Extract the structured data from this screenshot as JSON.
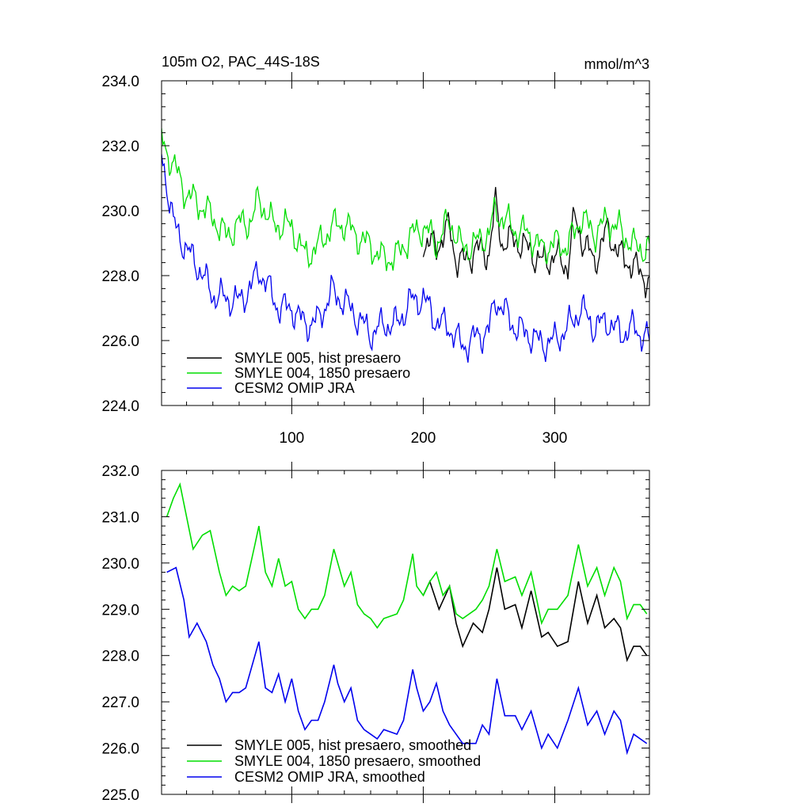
{
  "chart_data": [
    {
      "type": "line",
      "title": "105m O2, PAC_44S-18S",
      "units": "mmol/m^3",
      "xlim": [
        1,
        372
      ],
      "ylim": [
        224.0,
        234.0
      ],
      "xticks": [
        100,
        200,
        300
      ],
      "xtick_labels": [
        "100",
        "200",
        "300"
      ],
      "yticks": [
        224.0,
        226.0,
        228.0,
        230.0,
        232.0,
        234.0
      ],
      "ytick_labels": [
        "224.0",
        "226.0",
        "228.0",
        "230.0",
        "232.0",
        "234.0"
      ],
      "legend_position": "bottom-left",
      "series": [
        {
          "name": "SMYLE 005, hist presaero",
          "color": "#000000",
          "x_start": 200,
          "anchors": [
            [
              200,
              229.0
            ],
            [
              210,
              228.9
            ],
            [
              220,
              229.5
            ],
            [
              225,
              228.5
            ],
            [
              230,
              228.4
            ],
            [
              240,
              228.8
            ],
            [
              250,
              228.7
            ],
            [
              255,
              230.2
            ],
            [
              260,
              229.0
            ],
            [
              270,
              229.1
            ],
            [
              280,
              228.8
            ],
            [
              290,
              228.4
            ],
            [
              300,
              228.6
            ],
            [
              310,
              228.3
            ],
            [
              315,
              229.8
            ],
            [
              320,
              229.2
            ],
            [
              330,
              228.4
            ],
            [
              340,
              229.4
            ],
            [
              350,
              228.6
            ],
            [
              360,
              228.3
            ],
            [
              372,
              227.8
            ]
          ],
          "amp": 0.7
        },
        {
          "name": "SMYLE 004, 1850 presaero",
          "color": "#00dd00",
          "x_start": 1,
          "anchors": [
            [
              1,
              232.2
            ],
            [
              10,
              231.4
            ],
            [
              20,
              230.5
            ],
            [
              30,
              230.2
            ],
            [
              40,
              229.8
            ],
            [
              50,
              229.2
            ],
            [
              60,
              229.6
            ],
            [
              70,
              229.7
            ],
            [
              75,
              230.4
            ],
            [
              85,
              229.6
            ],
            [
              100,
              229.5
            ],
            [
              110,
              228.6
            ],
            [
              120,
              228.9
            ],
            [
              130,
              229.5
            ],
            [
              140,
              229.6
            ],
            [
              150,
              229.2
            ],
            [
              160,
              228.9
            ],
            [
              170,
              228.5
            ],
            [
              180,
              228.6
            ],
            [
              190,
              229.2
            ],
            [
              200,
              229.5
            ],
            [
              210,
              229.0
            ],
            [
              220,
              229.7
            ],
            [
              230,
              228.8
            ],
            [
              240,
              229.0
            ],
            [
              250,
              229.3
            ],
            [
              255,
              230.0
            ],
            [
              270,
              229.4
            ],
            [
              280,
              229.3
            ],
            [
              290,
              228.8
            ],
            [
              300,
              229.0
            ],
            [
              310,
              228.9
            ],
            [
              320,
              229.8
            ],
            [
              330,
              229.3
            ],
            [
              340,
              229.7
            ],
            [
              350,
              229.4
            ],
            [
              360,
              228.9
            ],
            [
              372,
              228.8
            ]
          ],
          "amp": 0.7
        },
        {
          "name": "CESM2 OMIP JRA",
          "color": "#0000ee",
          "x_start": 1,
          "anchors": [
            [
              1,
              231.8
            ],
            [
              10,
              229.6
            ],
            [
              20,
              228.8
            ],
            [
              30,
              228.2
            ],
            [
              40,
              227.4
            ],
            [
              50,
              227.3
            ],
            [
              60,
              227.2
            ],
            [
              70,
              227.7
            ],
            [
              75,
              228.2
            ],
            [
              90,
              227.0
            ],
            [
              100,
              227.0
            ],
            [
              110,
              226.5
            ],
            [
              120,
              226.6
            ],
            [
              130,
              227.5
            ],
            [
              140,
              227.2
            ],
            [
              150,
              226.7
            ],
            [
              160,
              226.2
            ],
            [
              170,
              226.5
            ],
            [
              180,
              226.5
            ],
            [
              190,
              227.2
            ],
            [
              200,
              227.3
            ],
            [
              210,
              226.6
            ],
            [
              220,
              226.4
            ],
            [
              230,
              225.8
            ],
            [
              240,
              226.1
            ],
            [
              250,
              226.3
            ],
            [
              255,
              227.3
            ],
            [
              270,
              226.4
            ],
            [
              280,
              226.2
            ],
            [
              290,
              225.9
            ],
            [
              300,
              226.0
            ],
            [
              310,
              226.4
            ],
            [
              320,
              227.0
            ],
            [
              330,
              226.4
            ],
            [
              340,
              226.6
            ],
            [
              350,
              226.2
            ],
            [
              360,
              226.4
            ],
            [
              372,
              226.0
            ]
          ],
          "amp": 0.7
        }
      ]
    },
    {
      "type": "line",
      "title": "",
      "xlim": [
        1,
        372
      ],
      "ylim": [
        225.0,
        232.0
      ],
      "xticks": [
        100,
        200,
        300
      ],
      "yticks": [
        225.0,
        226.0,
        227.0,
        228.0,
        229.0,
        230.0,
        231.0,
        232.0
      ],
      "ytick_labels": [
        "225.0",
        "226.0",
        "227.0",
        "228.0",
        "229.0",
        "230.0",
        "231.0",
        "232.0"
      ],
      "legend_position": "bottom-left",
      "series": [
        {
          "name": "SMYLE 005, hist presaero, smoothed",
          "color": "#000000",
          "x_start": 200,
          "anchors": [
            [
              200,
              229.3
            ],
            [
              205,
              229.6
            ],
            [
              212,
              229.0
            ],
            [
              220,
              229.5
            ],
            [
              225,
              228.7
            ],
            [
              230,
              228.2
            ],
            [
              238,
              228.7
            ],
            [
              245,
              228.5
            ],
            [
              250,
              229.0
            ],
            [
              256,
              229.9
            ],
            [
              262,
              229.0
            ],
            [
              270,
              229.1
            ],
            [
              275,
              228.6
            ],
            [
              282,
              229.4
            ],
            [
              290,
              228.4
            ],
            [
              295,
              228.5
            ],
            [
              302,
              228.2
            ],
            [
              310,
              228.3
            ],
            [
              318,
              229.6
            ],
            [
              325,
              228.7
            ],
            [
              332,
              229.3
            ],
            [
              338,
              228.6
            ],
            [
              345,
              228.8
            ],
            [
              350,
              228.6
            ],
            [
              355,
              227.9
            ],
            [
              360,
              228.2
            ],
            [
              365,
              228.2
            ],
            [
              370,
              228.0
            ]
          ]
        },
        {
          "name": "SMYLE 004, 1850 presaero, smoothed",
          "color": "#00dd00",
          "x_start": 5,
          "anchors": [
            [
              5,
              231.0
            ],
            [
              10,
              231.4
            ],
            [
              15,
              231.7
            ],
            [
              20,
              231.0
            ],
            [
              25,
              230.3
            ],
            [
              32,
              230.6
            ],
            [
              38,
              230.7
            ],
            [
              45,
              229.8
            ],
            [
              50,
              229.3
            ],
            [
              55,
              229.5
            ],
            [
              60,
              229.4
            ],
            [
              65,
              229.5
            ],
            [
              72,
              230.4
            ],
            [
              75,
              230.8
            ],
            [
              80,
              229.8
            ],
            [
              85,
              229.5
            ],
            [
              90,
              230.1
            ],
            [
              95,
              229.5
            ],
            [
              100,
              229.6
            ],
            [
              105,
              229.0
            ],
            [
              110,
              228.8
            ],
            [
              115,
              229.0
            ],
            [
              120,
              229.0
            ],
            [
              125,
              229.3
            ],
            [
              132,
              230.3
            ],
            [
              135,
              230.0
            ],
            [
              140,
              229.5
            ],
            [
              145,
              229.8
            ],
            [
              150,
              229.1
            ],
            [
              155,
              228.9
            ],
            [
              160,
              228.8
            ],
            [
              165,
              228.6
            ],
            [
              170,
              228.8
            ],
            [
              180,
              228.9
            ],
            [
              185,
              229.2
            ],
            [
              192,
              230.2
            ],
            [
              195,
              229.5
            ],
            [
              200,
              229.3
            ],
            [
              205,
              229.6
            ],
            [
              210,
              229.8
            ],
            [
              215,
              229.3
            ],
            [
              220,
              229.5
            ],
            [
              225,
              228.9
            ],
            [
              230,
              228.8
            ],
            [
              240,
              229.0
            ],
            [
              245,
              229.2
            ],
            [
              250,
              229.5
            ],
            [
              256,
              230.3
            ],
            [
              262,
              229.6
            ],
            [
              270,
              229.7
            ],
            [
              275,
              229.3
            ],
            [
              282,
              229.8
            ],
            [
              290,
              228.7
            ],
            [
              295,
              229.0
            ],
            [
              302,
              229.0
            ],
            [
              310,
              229.3
            ],
            [
              318,
              230.4
            ],
            [
              325,
              229.5
            ],
            [
              332,
              229.9
            ],
            [
              338,
              229.3
            ],
            [
              345,
              229.9
            ],
            [
              350,
              229.6
            ],
            [
              355,
              228.8
            ],
            [
              360,
              229.1
            ],
            [
              365,
              229.1
            ],
            [
              370,
              228.9
            ]
          ]
        },
        {
          "name": "CESM2 OMIP JRA, smoothed",
          "color": "#0000ee",
          "x_start": 5,
          "anchors": [
            [
              5,
              229.8
            ],
            [
              12,
              229.9
            ],
            [
              18,
              229.2
            ],
            [
              22,
              228.4
            ],
            [
              28,
              228.7
            ],
            [
              35,
              228.3
            ],
            [
              40,
              227.8
            ],
            [
              45,
              227.5
            ],
            [
              50,
              227.0
            ],
            [
              55,
              227.2
            ],
            [
              60,
              227.2
            ],
            [
              65,
              227.3
            ],
            [
              72,
              228.0
            ],
            [
              75,
              228.3
            ],
            [
              80,
              227.3
            ],
            [
              85,
              227.2
            ],
            [
              90,
              227.6
            ],
            [
              95,
              227.0
            ],
            [
              100,
              227.5
            ],
            [
              105,
              226.8
            ],
            [
              110,
              226.4
            ],
            [
              115,
              226.6
            ],
            [
              120,
              226.6
            ],
            [
              125,
              227.0
            ],
            [
              132,
              227.8
            ],
            [
              135,
              227.4
            ],
            [
              140,
              227.0
            ],
            [
              145,
              227.3
            ],
            [
              150,
              226.6
            ],
            [
              155,
              226.4
            ],
            [
              160,
              226.3
            ],
            [
              165,
              226.2
            ],
            [
              170,
              226.4
            ],
            [
              180,
              226.3
            ],
            [
              185,
              226.6
            ],
            [
              192,
              227.7
            ],
            [
              195,
              227.3
            ],
            [
              200,
              226.8
            ],
            [
              205,
              227.0
            ],
            [
              210,
              227.4
            ],
            [
              215,
              226.8
            ],
            [
              220,
              226.5
            ],
            [
              225,
              226.3
            ],
            [
              230,
              226.1
            ],
            [
              240,
              226.1
            ],
            [
              245,
              226.5
            ],
            [
              250,
              226.3
            ],
            [
              256,
              227.5
            ],
            [
              262,
              226.7
            ],
            [
              270,
              226.7
            ],
            [
              275,
              226.4
            ],
            [
              282,
              226.8
            ],
            [
              290,
              226.0
            ],
            [
              295,
              226.3
            ],
            [
              302,
              226.0
            ],
            [
              310,
              226.6
            ],
            [
              318,
              227.3
            ],
            [
              325,
              226.5
            ],
            [
              332,
              226.8
            ],
            [
              338,
              226.3
            ],
            [
              345,
              226.8
            ],
            [
              350,
              226.6
            ],
            [
              355,
              225.9
            ],
            [
              360,
              226.3
            ],
            [
              365,
              226.2
            ],
            [
              370,
              226.1
            ]
          ]
        }
      ]
    }
  ]
}
